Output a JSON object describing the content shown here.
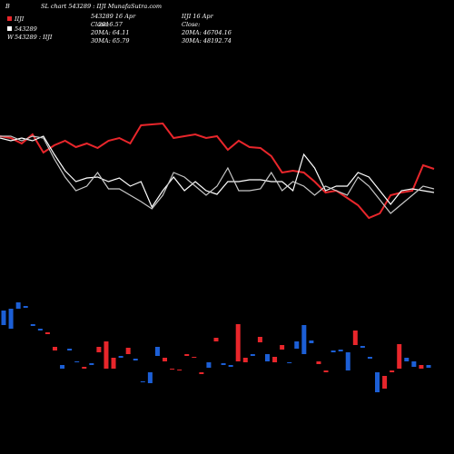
{
  "header": {
    "corner": "B",
    "title": "SL chart 543289 : IIJI MunafaSutra.com",
    "legend": [
      {
        "text": "IIJI",
        "color": "#e8262b"
      },
      {
        "text": "543289",
        "color": "#ffffff"
      },
      {
        "mark": "W",
        "text": "543289 : IIJI"
      }
    ],
    "mid": {
      "date": "543289 16 Apr",
      "close_label": "Close:",
      "close": "2916.57",
      "ma20": "20MA: 64.11",
      "ma30": "30MA: 65.79"
    },
    "right": {
      "date": "IIJI 16 Apr",
      "close_label": "Close:",
      "ma20": "20MA: 46704.16",
      "ma30": "30MA: 48192.74"
    }
  },
  "chart_data": [
    {
      "type": "line",
      "ylim": [
        240,
        370
      ],
      "series": [
        {
          "color": "#e8262b",
          "values": [
            350,
            348,
            342,
            352,
            332,
            340,
            345,
            338,
            342,
            337,
            345,
            348,
            342,
            362,
            363,
            364,
            348,
            350,
            352,
            348,
            350,
            335,
            345,
            338,
            337,
            328,
            310,
            312,
            310,
            300,
            288,
            290,
            282,
            274,
            260,
            265,
            285,
            288,
            290,
            318,
            314
          ]
        },
        {
          "color": "#ffffff",
          "values": [
            348,
            345,
            348,
            345,
            350,
            330,
            312,
            300,
            304,
            305,
            300,
            304,
            295,
            300,
            272,
            290,
            305,
            290,
            300,
            290,
            286,
            300,
            300,
            302,
            302,
            300,
            300,
            290,
            330,
            315,
            290,
            295,
            295,
            310,
            305,
            290,
            275,
            290,
            292,
            290,
            288
          ]
        },
        {
          "color": "#c8c8c8",
          "values": [
            350,
            350,
            345,
            350,
            348,
            325,
            305,
            290,
            295,
            310,
            292,
            292,
            285,
            278,
            270,
            285,
            310,
            305,
            295,
            285,
            295,
            315,
            290,
            290,
            292,
            310,
            290,
            300,
            295,
            285,
            295,
            290,
            285,
            305,
            295,
            280,
            265,
            275,
            285,
            295,
            292
          ]
        }
      ]
    },
    {
      "type": "floating-bar",
      "ylim": [
        60,
        170
      ],
      "start": [
        158,
        160,
        167,
        163,
        143,
        138,
        134,
        118,
        98,
        116,
        102,
        96,
        100,
        118,
        124,
        106,
        108,
        117,
        105,
        80,
        90,
        118,
        106,
        94,
        93,
        110,
        107,
        90,
        101,
        128,
        100,
        98,
        143,
        106,
        110,
        129,
        110,
        107,
        120,
        101,
        124,
        142,
        125,
        102,
        92,
        114,
        115,
        112,
        136,
        119,
        107,
        90,
        86,
        92,
        121,
        106,
        102,
        98,
        98
      ],
      "end": [
        142,
        138,
        160,
        161,
        141,
        136,
        132,
        114,
        94,
        114,
        101,
        94,
        98,
        112,
        94,
        94,
        106,
        110,
        103,
        79,
        78,
        108,
        102,
        93,
        92,
        108,
        106,
        88,
        95,
        124,
        98,
        96,
        102,
        101,
        108,
        123,
        102,
        101,
        115,
        100,
        116,
        110,
        122,
        99,
        90,
        112,
        113,
        92,
        120,
        117,
        105,
        68,
        72,
        90,
        94,
        102,
        96,
        94,
        95
      ],
      "colors": [
        "#1c5fd6",
        "#1c5fd6",
        "#1c5fd6",
        "#1c5fd6",
        "#1c5fd6",
        "#1c5fd6",
        "#e8262b",
        "#e8262b",
        "#1c5fd6",
        "#1c5fd6",
        "#1c5fd6",
        "#e8262b",
        "#1c5fd6",
        "#e8262b",
        "#e8262b",
        "#e8262b",
        "#1c5fd6",
        "#e8262b",
        "#1c5fd6",
        "#1c5fd6",
        "#1c5fd6",
        "#1c5fd6",
        "#e8262b",
        "#e8262b",
        "#e8262b",
        "#e8262b",
        "#e8262b",
        "#e8262b",
        "#1c5fd6",
        "#e8262b",
        "#1c5fd6",
        "#1c5fd6",
        "#e8262b",
        "#e8262b",
        "#1c5fd6",
        "#e8262b",
        "#1c5fd6",
        "#e8262b",
        "#e8262b",
        "#1c5fd6",
        "#1c5fd6",
        "#1c5fd6",
        "#1c5fd6",
        "#e8262b",
        "#e8262b",
        "#1c5fd6",
        "#1c5fd6",
        "#1c5fd6",
        "#e8262b",
        "#1c5fd6",
        "#1c5fd6",
        "#1c5fd6",
        "#e8262b",
        "#e8262b",
        "#e8262b",
        "#1c5fd6",
        "#1c5fd6",
        "#e8262b",
        "#1c5fd6"
      ]
    }
  ]
}
